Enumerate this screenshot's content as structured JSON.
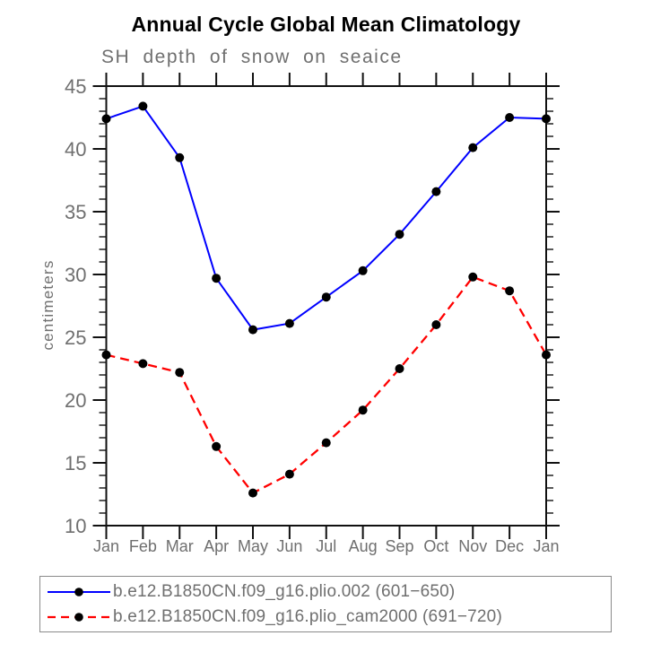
{
  "window": {
    "background": "#ffffff"
  },
  "chart_data": {
    "type": "line",
    "title": "Annual Cycle Global Mean Climatology",
    "subtitle": "SH depth of snow on seaice",
    "xlabel": "",
    "ylabel": "centimeters",
    "ylim": [
      10,
      45
    ],
    "ytick_major_step": 5,
    "ytick_minor_step": 1,
    "ytick_labels": [
      "10",
      "15",
      "20",
      "25",
      "30",
      "35",
      "40",
      "45"
    ],
    "grid": false,
    "legend_position": "bottom",
    "axis_color": "#111111",
    "label_color": "#6f6f6f",
    "marker_color": "#000000",
    "categories": [
      "Jan",
      "Feb",
      "Mar",
      "Apr",
      "May",
      "Jun",
      "Jul",
      "Aug",
      "Sep",
      "Oct",
      "Nov",
      "Dec",
      "Jan"
    ],
    "series": [
      {
        "name": "b.e12.B1850CN.f09_g16.plio.002 (601−650)",
        "color": "#0000ff",
        "line_style": "solid",
        "marker": "filled-circle",
        "values": [
          42.4,
          43.4,
          39.3,
          29.7,
          25.6,
          26.1,
          28.2,
          30.3,
          33.2,
          36.6,
          40.1,
          42.5,
          42.4
        ]
      },
      {
        "name": "b.e12.B1850CN.f09_g16.plio_cam2000 (691−720)",
        "color": "#ff0000",
        "line_style": "dashed",
        "marker": "filled-circle",
        "values": [
          23.6,
          22.9,
          22.2,
          16.3,
          12.6,
          14.1,
          16.6,
          19.2,
          22.5,
          26.0,
          29.8,
          28.7,
          23.6
        ]
      }
    ]
  }
}
